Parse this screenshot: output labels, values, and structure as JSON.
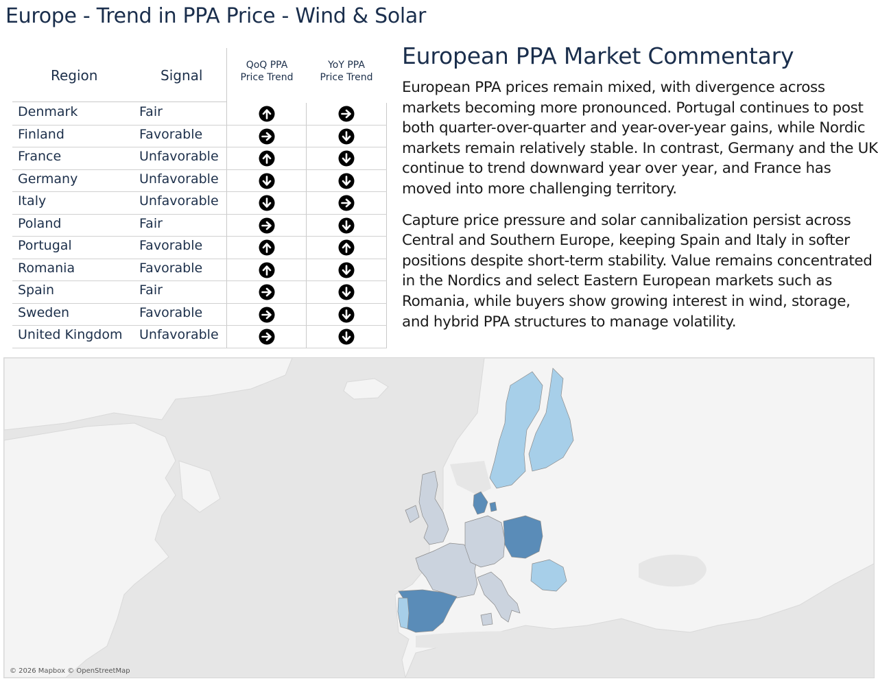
{
  "title": "Europe - Trend in PPA Price - Wind & Solar",
  "table": {
    "headers": {
      "region": "Region",
      "signal": "Signal",
      "qoq": [
        "QoQ PPA",
        "Price Trend"
      ],
      "yoy": [
        "YoY PPA",
        "Price Trend"
      ]
    },
    "rows": [
      {
        "region": "Denmark",
        "signal": "Fair",
        "qoq": "up",
        "yoy": "right"
      },
      {
        "region": "Finland",
        "signal": "Favorable",
        "qoq": "right",
        "yoy": "down"
      },
      {
        "region": "France",
        "signal": "Unfavorable",
        "qoq": "up",
        "yoy": "down"
      },
      {
        "region": "Germany",
        "signal": "Unfavorable",
        "qoq": "down",
        "yoy": "down"
      },
      {
        "region": "Italy",
        "signal": "Unfavorable",
        "qoq": "down",
        "yoy": "right"
      },
      {
        "region": "Poland",
        "signal": "Fair",
        "qoq": "right",
        "yoy": "down"
      },
      {
        "region": "Portugal",
        "signal": "Favorable",
        "qoq": "up",
        "yoy": "up"
      },
      {
        "region": "Romania",
        "signal": "Favorable",
        "qoq": "up",
        "yoy": "down"
      },
      {
        "region": "Spain",
        "signal": "Fair",
        "qoq": "right",
        "yoy": "down"
      },
      {
        "region": "Sweden",
        "signal": "Favorable",
        "qoq": "right",
        "yoy": "down"
      },
      {
        "region": "United Kingdom",
        "signal": "Unfavorable",
        "qoq": "right",
        "yoy": "down"
      }
    ]
  },
  "commentary": {
    "title": "European PPA Market Commentary",
    "paragraphs": [
      "European PPA prices remain mixed, with divergence across markets becoming more pronounced. Portugal continues to post both quarter-over-quarter and year-over-year gains, while Nordic markets remain relatively stable. In contrast, Germany and the UK continue to trend downward year over year, and France has moved into more challenging territory.",
      "Capture price pressure and solar cannibalization persist across Central and Southern Europe, keeping Spain and Italy in softer positions despite short-term stability. Value remains concentrated in the Nordics and select Eastern European markets such as Romania, while buyers show growing interest in wind, storage, and hybrid PPA structures to manage volatility."
    ]
  },
  "map": {
    "attribution": "© 2026 Mapbox © OpenStreetMap",
    "colors": {
      "Favorable": "#a7cfe9",
      "Fair": "#5a8cb8",
      "Unfavorable": "#cbd3de",
      "land": "#f5f5f5",
      "water": "#e6e6e6"
    },
    "regions": [
      {
        "region": "Denmark",
        "signal": "Fair"
      },
      {
        "region": "Finland",
        "signal": "Favorable"
      },
      {
        "region": "France",
        "signal": "Unfavorable"
      },
      {
        "region": "Germany",
        "signal": "Unfavorable"
      },
      {
        "region": "Italy",
        "signal": "Unfavorable"
      },
      {
        "region": "Poland",
        "signal": "Fair"
      },
      {
        "region": "Portugal",
        "signal": "Favorable"
      },
      {
        "region": "Romania",
        "signal": "Favorable"
      },
      {
        "region": "Spain",
        "signal": "Fair"
      },
      {
        "region": "Sweden",
        "signal": "Favorable"
      },
      {
        "region": "United Kingdom",
        "signal": "Unfavorable"
      }
    ]
  }
}
